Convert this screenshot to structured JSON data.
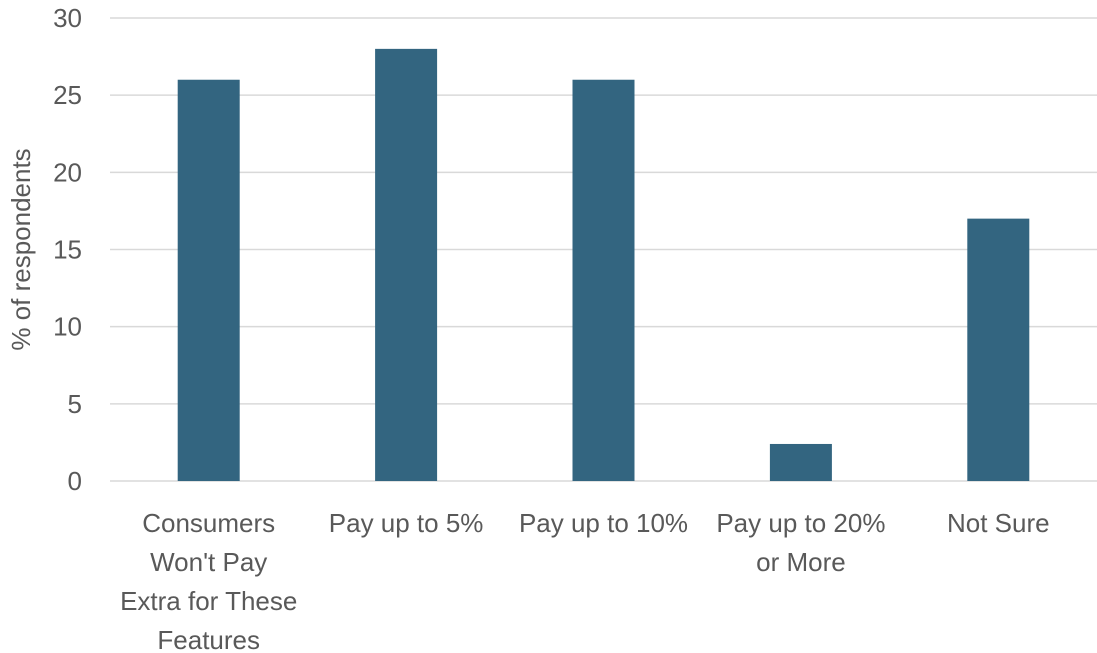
{
  "chart_data": {
    "type": "bar",
    "title": "",
    "xlabel": "",
    "ylabel": "% of respondents",
    "ylim": [
      0,
      30
    ],
    "ytick_step": 5,
    "grid": true,
    "bar_color": "#336580",
    "categories": [
      "Consumers Won't Pay Extra for These Features",
      "Pay up to 5%",
      "Pay up to 10%",
      "Pay up to 20% or More",
      "Not Sure"
    ],
    "category_label_lines": [
      [
        "Consumers",
        "Won't Pay",
        "Extra for These",
        "Features"
      ],
      [
        "Pay up to 5%"
      ],
      [
        "Pay up to 10%"
      ],
      [
        "Pay up to 20%",
        "or More"
      ],
      [
        "Not Sure"
      ]
    ],
    "values": [
      26,
      28,
      26,
      2.4,
      17
    ]
  }
}
